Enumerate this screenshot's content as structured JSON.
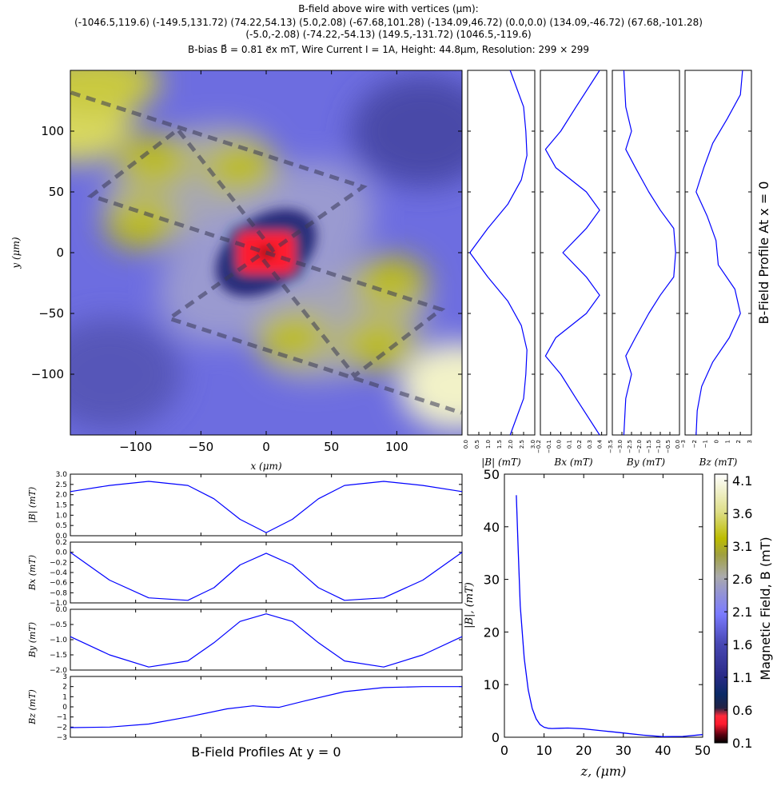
{
  "header": {
    "title": "B-field above wire with vertices (μm):",
    "vertices_line1": "(-1046.5,119.6) (-149.5,131.72) (74.22,54.13) (5.0,2.08) (-67.68,101.28) (-134.09,46.72) (0.0,0.0) (134.09,-46.72) (67.68,-101.28)",
    "vertices_line2": "(-5.0,-2.08) (-74.22,-54.13) (149.5,-131.72) (1046.5,-119.6)",
    "params": "B-bias B⃗ = 0.81 e⃗x mT, Wire Current I = 1A, Height: 44.8μm, Resolution: 299 × 299"
  },
  "colors": {
    "line": "#0000ff",
    "wire": "#3a3a55",
    "low": "#000000",
    "mid_red": "#ff1a2e",
    "blue": "#7b7bff",
    "grey": "#a9a9a9",
    "yellow": "#bcbc00",
    "high": "#ffffff"
  },
  "chart_data": [
    {
      "id": "map",
      "type": "heatmap",
      "xlabel": "x (μm)",
      "ylabel": "y (μm)",
      "xlim": [
        -150,
        150
      ],
      "ylim": [
        -150,
        150
      ],
      "xticks": [
        -100,
        -50,
        0,
        50,
        100
      ],
      "yticks": [
        -100,
        -50,
        0,
        50,
        100
      ],
      "xtick_labels": [
        "−100",
        "−50",
        "0",
        "50",
        "100"
      ],
      "ytick_labels": [
        "−100",
        "−50",
        "0",
        "50",
        "100"
      ],
      "wire": [
        [
          -149.5,
          131.72
        ],
        [
          74.22,
          54.13
        ],
        [
          5.0,
          2.08
        ],
        [
          -67.68,
          101.28
        ],
        [
          -134.09,
          46.72
        ],
        [
          0.0,
          0.0
        ],
        [
          134.09,
          -46.72
        ],
        [
          67.68,
          -101.28
        ],
        [
          -5.0,
          -2.08
        ],
        [
          -74.22,
          -54.13
        ],
        [
          149.5,
          -131.72
        ]
      ],
      "maxima": [
        [
          85,
          -75,
          2.6
        ],
        [
          -85,
          75,
          2.6
        ],
        [
          -95,
          25,
          2.6
        ],
        [
          95,
          -25,
          2.6
        ],
        [
          -20,
          70,
          2.5
        ],
        [
          20,
          -70,
          2.5
        ],
        [
          145,
          -110,
          3.8
        ],
        [
          -145,
          110,
          3.2
        ]
      ],
      "minimum": [
        0,
        0
      ]
    },
    {
      "id": "colorbar",
      "type": "colorbar",
      "label": "Magnetic Field, B (mT)",
      "range": [
        0.1,
        4.2
      ],
      "ticks": [
        0.1,
        0.6,
        1.1,
        1.6,
        2.1,
        2.6,
        3.1,
        3.6,
        4.1
      ],
      "tick_labels": [
        "0.1",
        "0.6",
        "1.1",
        "1.6",
        "2.1",
        "2.6",
        "3.1",
        "3.6",
        "4.1"
      ]
    },
    {
      "id": "vx_absB",
      "type": "line",
      "xlabel": "|B| (mT)",
      "xlim": [
        0,
        3
      ],
      "xticks": [
        0,
        0.5,
        1,
        1.5,
        2,
        2.5,
        3
      ],
      "xtick_labels": [
        "0.0",
        "0.5",
        "1.0",
        "1.5",
        "2.0",
        "2.5",
        "3.0"
      ],
      "y": [
        -150,
        -120,
        -100,
        -80,
        -60,
        -40,
        -20,
        0,
        20,
        40,
        60,
        80,
        100,
        120,
        150
      ],
      "x": [
        1.9,
        2.5,
        2.6,
        2.65,
        2.4,
        1.8,
        0.9,
        0.1,
        0.9,
        1.8,
        2.4,
        2.65,
        2.6,
        2.5,
        1.9
      ]
    },
    {
      "id": "vx_Bx",
      "type": "line",
      "xlabel": "Bx (mT)",
      "xlim": [
        -0.2,
        0.45
      ],
      "xticks": [
        -0.2,
        -0.1,
        0,
        0.1,
        0.2,
        0.3,
        0.4
      ],
      "xtick_labels": [
        "−0.2",
        "−0.1",
        "0.0",
        "0.1",
        "0.2",
        "0.3",
        "0.4"
      ],
      "y": [
        -150,
        -120,
        -100,
        -85,
        -70,
        -50,
        -35,
        -20,
        0,
        20,
        35,
        50,
        70,
        85,
        100,
        120,
        150
      ],
      "x": [
        0.38,
        0.15,
        0.0,
        -0.15,
        -0.05,
        0.25,
        0.38,
        0.25,
        0.02,
        0.25,
        0.38,
        0.25,
        -0.05,
        -0.15,
        0.0,
        0.15,
        0.38
      ]
    },
    {
      "id": "vx_By",
      "type": "line",
      "xlabel": "By (mT)",
      "xlim": [
        -3.5,
        0
      ],
      "xticks": [
        -3.5,
        -3,
        -2.5,
        -2,
        -1.5,
        -1,
        -0.5,
        0
      ],
      "xtick_labels": [
        "−3.5",
        "−3.0",
        "−2.5",
        "−2.0",
        "−1.5",
        "−1.0",
        "−0.5",
        "0.0"
      ],
      "y": [
        -150,
        -120,
        -100,
        -85,
        -70,
        -50,
        -35,
        -20,
        0,
        20,
        35,
        50,
        70,
        85,
        100,
        120,
        150
      ],
      "x": [
        -2.9,
        -2.8,
        -2.5,
        -2.8,
        -2.3,
        -1.6,
        -1.0,
        -0.3,
        -0.2,
        -0.3,
        -1.0,
        -1.6,
        -2.3,
        -2.8,
        -2.5,
        -2.8,
        -2.9
      ]
    },
    {
      "id": "vx_Bz",
      "type": "line",
      "xlabel": "Bz (mT)",
      "xlim": [
        -3,
        3
      ],
      "xticks": [
        -3,
        -2,
        -1,
        0,
        1,
        2,
        3
      ],
      "xtick_labels": [
        "−3",
        "−2",
        "−1",
        "0",
        "1",
        "2",
        "3"
      ],
      "y": [
        -150,
        -130,
        -110,
        -90,
        -70,
        -50,
        -30,
        -10,
        10,
        30,
        50,
        70,
        90,
        110,
        130,
        150
      ],
      "x": [
        -2.0,
        -1.9,
        -1.5,
        -0.5,
        1.0,
        2.0,
        1.5,
        0.0,
        -0.2,
        -1.0,
        -2.0,
        -1.3,
        -0.5,
        0.8,
        2.0,
        2.2
      ]
    },
    {
      "id": "hz_absB",
      "type": "line",
      "ylabel": "|B| (mT)",
      "ylim": [
        0,
        3
      ],
      "yticks": [
        0,
        0.5,
        1,
        1.5,
        2,
        2.5,
        3
      ],
      "ytick_labels": [
        "0.0",
        "0.5",
        "1.0",
        "1.5",
        "2.0",
        "2.5",
        "3.0"
      ],
      "x": [
        -150,
        -120,
        -90,
        -60,
        -40,
        -20,
        0,
        20,
        40,
        60,
        90,
        120,
        150
      ],
      "y": [
        2.15,
        2.45,
        2.65,
        2.45,
        1.8,
        0.8,
        0.15,
        0.8,
        1.8,
        2.45,
        2.65,
        2.45,
        2.15
      ]
    },
    {
      "id": "hz_Bx",
      "type": "line",
      "ylabel": "Bx (mT)",
      "ylim": [
        -1.0,
        0.2
      ],
      "yticks": [
        -1.0,
        -0.8,
        -0.6,
        -0.4,
        -0.2,
        0.0,
        0.2
      ],
      "ytick_labels": [
        "−1.0",
        "−0.8",
        "−0.6",
        "−0.4",
        "−0.2",
        "0.0",
        "0.2"
      ],
      "x": [
        -150,
        -120,
        -90,
        -60,
        -40,
        -20,
        0,
        20,
        40,
        60,
        90,
        120,
        150
      ],
      "y": [
        0.0,
        -0.55,
        -0.9,
        -0.95,
        -0.7,
        -0.25,
        -0.02,
        -0.25,
        -0.7,
        -0.95,
        -0.9,
        -0.55,
        0.0
      ]
    },
    {
      "id": "hz_By",
      "type": "line",
      "ylabel": "By (mT)",
      "ylim": [
        -2.0,
        0.0
      ],
      "yticks": [
        -2.0,
        -1.5,
        -1.0,
        -0.5,
        0.0
      ],
      "ytick_labels": [
        "−2.0",
        "−1.5",
        "−1.0",
        "−0.5",
        "0.0"
      ],
      "x": [
        -150,
        -120,
        -90,
        -60,
        -40,
        -20,
        0,
        20,
        40,
        60,
        90,
        120,
        150
      ],
      "y": [
        -0.9,
        -1.5,
        -1.9,
        -1.7,
        -1.1,
        -0.4,
        -0.15,
        -0.4,
        -1.1,
        -1.7,
        -1.9,
        -1.5,
        -0.9
      ]
    },
    {
      "id": "hz_Bz",
      "type": "line",
      "ylabel": "Bz (mT)",
      "ylim": [
        -3,
        3
      ],
      "yticks": [
        -3,
        -2,
        -1,
        0,
        1,
        2,
        3
      ],
      "ytick_labels": [
        "−3",
        "−2",
        "−1",
        "0",
        "1",
        "2",
        "3"
      ],
      "x": [
        -150,
        -120,
        -90,
        -60,
        -30,
        -10,
        0,
        10,
        30,
        60,
        90,
        120,
        150
      ],
      "y": [
        -2.05,
        -2.0,
        -1.7,
        -1.0,
        -0.2,
        0.1,
        0.0,
        -0.05,
        0.6,
        1.5,
        1.9,
        2.0,
        2.0
      ]
    },
    {
      "id": "zplot",
      "type": "line",
      "xlabel": "z, (μm)",
      "ylabel": "|B|, (mT)",
      "xlim": [
        0,
        50
      ],
      "ylim": [
        0,
        50
      ],
      "xticks": [
        0,
        10,
        20,
        30,
        40,
        50
      ],
      "yticks": [
        0,
        10,
        20,
        30,
        40,
        50
      ],
      "xtick_labels": [
        "0",
        "10",
        "20",
        "30",
        "40",
        "50"
      ],
      "ytick_labels": [
        "0",
        "10",
        "20",
        "30",
        "40",
        "50"
      ],
      "x": [
        3.0,
        3.5,
        4.0,
        5.0,
        6.0,
        7.0,
        8.0,
        9.0,
        10.0,
        11.0,
        12.0,
        14.0,
        16.0,
        20.0,
        25.0,
        30.0,
        35.0,
        40.0,
        45.0,
        50.0
      ],
      "y": [
        46.0,
        35.0,
        25.0,
        15.0,
        9.0,
        5.5,
        3.5,
        2.4,
        1.9,
        1.7,
        1.65,
        1.7,
        1.75,
        1.6,
        1.2,
        0.8,
        0.4,
        0.1,
        0.15,
        0.5
      ]
    }
  ],
  "labels": {
    "vert_profile_title": "B-Field Profile At x = 0",
    "horiz_profile_title": "B-Field Profiles At y = 0"
  }
}
